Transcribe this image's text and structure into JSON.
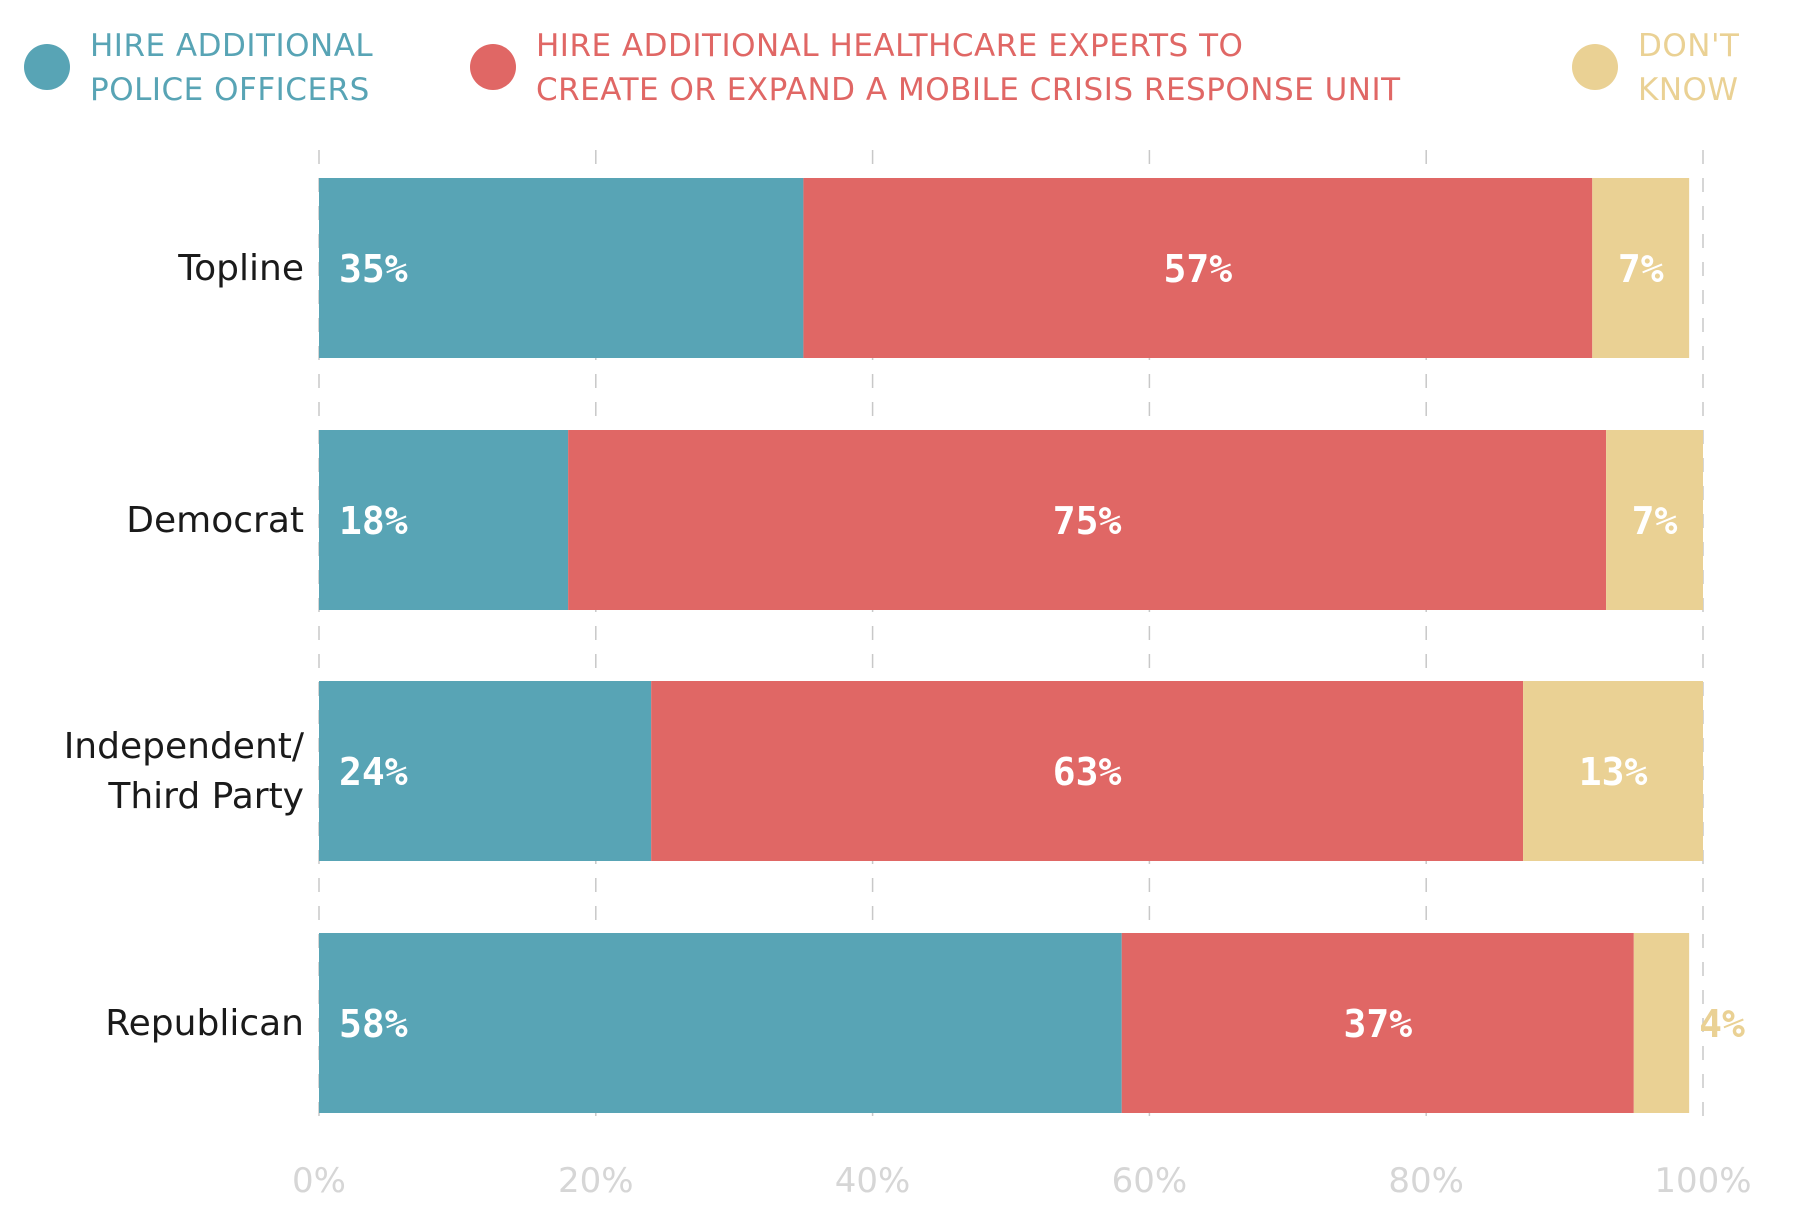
{
  "chart_data": {
    "type": "bar",
    "orientation": "horizontal",
    "stacked": true,
    "categories": [
      "Topline",
      "Democrat",
      "Independent/\nThird Party",
      "Republican"
    ],
    "series": [
      {
        "name": "HIRE ADDITIONAL\nPOLICE OFFICERS",
        "values": [
          35,
          18,
          24,
          58
        ],
        "labels": [
          "35%",
          "18%",
          "24%",
          "58%"
        ],
        "color": "#58a4b5"
      },
      {
        "name": "HIRE ADDITIONAL HEALTHCARE EXPERTS TO\nCREATE OR EXPAND A MOBILE CRISIS RESPONSE UNIT",
        "values": [
          57,
          75,
          63,
          37
        ],
        "labels": [
          "57%",
          "75%",
          "63%",
          "37%"
        ],
        "color": "#e06765"
      },
      {
        "name": "DON'T\nKNOW",
        "values": [
          7,
          7,
          13,
          4
        ],
        "labels": [
          "7%",
          "7%",
          "13%",
          "4%"
        ],
        "color": "#ead194"
      }
    ],
    "xlim": [
      0,
      100
    ],
    "xticks": [
      "0%",
      "20%",
      "40%",
      "60%",
      "80%",
      "100%"
    ],
    "grid": true,
    "legend": "top"
  }
}
